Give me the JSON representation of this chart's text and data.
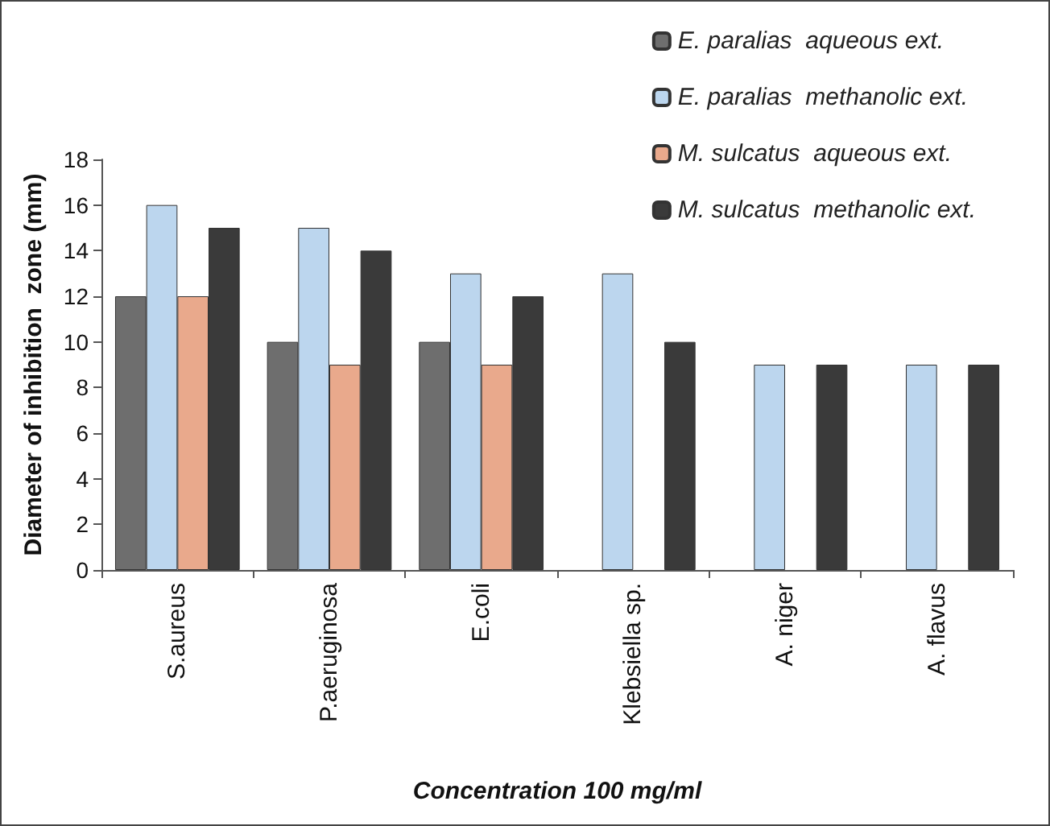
{
  "chart_data": {
    "type": "bar",
    "xlabel": "Concentration 100 mg/ml",
    "ylabel": "Diameter of inhibition  zone (mm)",
    "categories": [
      "S.aureus",
      "P.aeruginosa",
      "E.coli",
      "Klebsiella sp.",
      "A. niger",
      "A. flavus"
    ],
    "series": [
      {
        "name": "E. paralias  aqueous ext.",
        "color": "#6e6e6e",
        "values": [
          12,
          10,
          10,
          null,
          null,
          null
        ]
      },
      {
        "name": "E. paralias  methanolic ext.",
        "color": "#bcd6ee",
        "values": [
          16,
          15,
          13,
          13,
          9,
          9
        ]
      },
      {
        "name": "M. sulcatus  aqueous ext.",
        "color": "#e9a98c",
        "values": [
          12,
          9,
          9,
          null,
          null,
          null
        ]
      },
      {
        "name": "M. sulcatus  methanolic ext.",
        "color": "#3a3a3a",
        "values": [
          15,
          14,
          12,
          10,
          9,
          9
        ]
      }
    ],
    "ylim": [
      0,
      18
    ],
    "yticks": [
      0,
      2,
      4,
      6,
      8,
      10,
      12,
      14,
      16,
      18
    ],
    "grid": false,
    "legend": "top right"
  }
}
